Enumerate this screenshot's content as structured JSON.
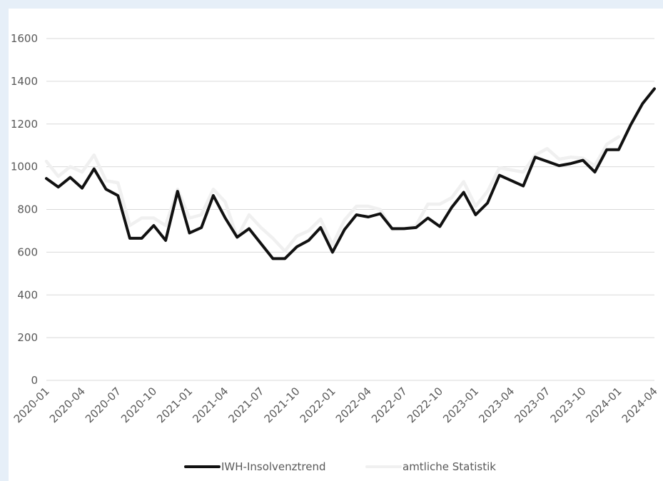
{
  "chart_data": {
    "type": "line",
    "title": "",
    "xlabel": "",
    "ylabel": "",
    "ylim": [
      0,
      1600
    ],
    "yticks": [
      0,
      200,
      400,
      600,
      800,
      1000,
      1200,
      1400,
      1600
    ],
    "x_tick_labels": [
      "2020-01",
      "2020-04",
      "2020-07",
      "2020-10",
      "2021-01",
      "2021-04",
      "2021-07",
      "2021-10",
      "2022-01",
      "2022-04",
      "2022-07",
      "2022-10",
      "2023-01",
      "2023-04",
      "2023-07",
      "2023-10",
      "2024-01",
      "2024-04"
    ],
    "x": [
      "2020-01",
      "2020-02",
      "2020-03",
      "2020-04",
      "2020-05",
      "2020-06",
      "2020-07",
      "2020-08",
      "2020-09",
      "2020-10",
      "2020-11",
      "2020-12",
      "2021-01",
      "2021-02",
      "2021-03",
      "2021-04",
      "2021-05",
      "2021-06",
      "2021-07",
      "2021-08",
      "2021-09",
      "2021-10",
      "2021-11",
      "2021-12",
      "2022-01",
      "2022-02",
      "2022-03",
      "2022-04",
      "2022-05",
      "2022-06",
      "2022-07",
      "2022-08",
      "2022-09",
      "2022-10",
      "2022-11",
      "2022-12",
      "2023-01",
      "2023-02",
      "2023-03",
      "2023-04",
      "2023-05",
      "2023-06",
      "2023-07",
      "2023-08",
      "2023-09",
      "2023-10",
      "2023-11",
      "2023-12",
      "2024-01",
      "2024-02",
      "2024-03",
      "2024-04"
    ],
    "grid": true,
    "legend_position": "bottom",
    "series": [
      {
        "name": "IWH-Insolvenztrend",
        "color": "#111111",
        "values": [
          945,
          905,
          950,
          900,
          990,
          895,
          865,
          665,
          665,
          725,
          655,
          885,
          690,
          715,
          865,
          760,
          670,
          710,
          640,
          570,
          570,
          625,
          655,
          715,
          600,
          705,
          775,
          765,
          780,
          710,
          710,
          715,
          760,
          720,
          810,
          880,
          775,
          830,
          960,
          935,
          910,
          1045,
          1025,
          1005,
          1015,
          1030,
          975,
          1080,
          1080,
          1195,
          1295,
          1365
        ]
      },
      {
        "name": "amtliche Statistik",
        "color": "#f0f0f0",
        "values": [
          1025,
          955,
          1000,
          975,
          1055,
          935,
          925,
          725,
          760,
          760,
          725,
          895,
          760,
          775,
          895,
          835,
          670,
          775,
          715,
          665,
          605,
          675,
          700,
          755,
          635,
          750,
          815,
          815,
          800,
          705,
          710,
          725,
          825,
          825,
          855,
          930,
          815,
          885,
          995,
          985,
          975,
          1055,
          1085,
          1035,
          1045,
          1040,
          1005,
          1105,
          1140,
          null,
          null,
          null
        ]
      }
    ]
  }
}
